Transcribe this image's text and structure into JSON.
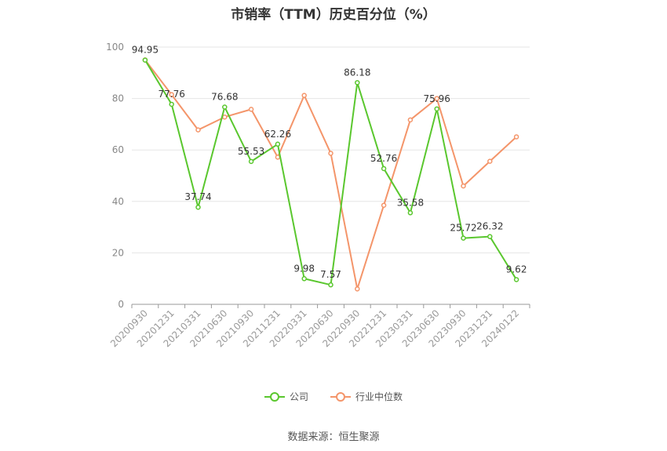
{
  "chart_data": {
    "type": "line",
    "title": "市销率（TTM）历史百分位（%）",
    "categories": [
      "20200930",
      "20201231",
      "20210331",
      "20210630",
      "20210930",
      "20211231",
      "20220331",
      "20220630",
      "20220930",
      "20221231",
      "20230331",
      "20230630",
      "20230930",
      "20231231",
      "20240122"
    ],
    "ylim": [
      0,
      100
    ],
    "yticks": [
      0,
      20,
      40,
      60,
      80,
      100
    ],
    "grid": true,
    "legend_position": "bottom",
    "series": [
      {
        "name": "公司",
        "color": "#5ac72e",
        "values": [
          94.95,
          77.76,
          37.74,
          76.68,
          55.53,
          62.26,
          9.98,
          7.57,
          86.18,
          52.76,
          35.58,
          75.96,
          25.72,
          26.32,
          9.62
        ],
        "labels": [
          "94.95",
          "77.76",
          "37.74",
          "76.68",
          "55.53",
          "62.26",
          "9.98",
          "7.57",
          "86.18",
          "52.76",
          "35.58",
          "75.96",
          "25.72",
          "26.32",
          "9.62"
        ]
      },
      {
        "name": "行业中位数",
        "color": "#f4956a",
        "values": [
          95.0,
          81.5,
          67.8,
          72.8,
          75.8,
          57.2,
          81.2,
          58.7,
          6.0,
          38.5,
          71.7,
          80.0,
          46.0,
          55.6,
          65.1
        ]
      }
    ]
  },
  "source": "数据来源：恒生聚源"
}
